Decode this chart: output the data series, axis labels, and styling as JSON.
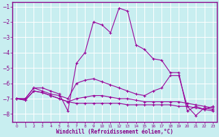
{
  "title": "",
  "xlabel": "Windchill (Refroidissement éolien,°C)",
  "ylabel": "",
  "background_color": "#c8eef0",
  "line_color": "#990099",
  "grid_color": "#ffffff",
  "xlabel_color": "#880088",
  "border_color": "#880088",
  "xlim": [
    -0.5,
    23.5
  ],
  "ylim": [
    -8.5,
    -0.7
  ],
  "yticks": [
    -8,
    -7,
    -6,
    -5,
    -4,
    -3,
    -2,
    -1
  ],
  "xticks": [
    0,
    1,
    2,
    3,
    4,
    5,
    6,
    7,
    8,
    9,
    10,
    11,
    12,
    13,
    14,
    15,
    16,
    17,
    18,
    19,
    20,
    21,
    22,
    23
  ],
  "series": [
    [
      -7.0,
      -7.0,
      -6.3,
      -6.3,
      -6.5,
      -6.7,
      -7.8,
      -4.7,
      -4.0,
      -2.0,
      -2.2,
      -2.7,
      -1.1,
      -1.3,
      -3.5,
      -3.8,
      -4.4,
      -4.5,
      -5.3,
      -5.3,
      -7.8,
      -7.5,
      -7.7,
      -7.5
    ],
    [
      -7.0,
      -7.0,
      -6.3,
      -6.5,
      -6.7,
      -6.8,
      -7.0,
      -6.0,
      -5.8,
      -5.7,
      -5.9,
      -6.1,
      -6.3,
      -6.5,
      -6.7,
      -6.8,
      -6.5,
      -6.3,
      -5.5,
      -5.5,
      -7.5,
      -8.1,
      -7.6,
      -7.7
    ],
    [
      -7.0,
      -7.1,
      -6.5,
      -6.6,
      -6.8,
      -7.0,
      -7.2,
      -7.0,
      -6.9,
      -6.8,
      -6.8,
      -6.9,
      -7.0,
      -7.0,
      -7.1,
      -7.2,
      -7.2,
      -7.2,
      -7.2,
      -7.2,
      -7.3,
      -7.4,
      -7.5,
      -7.6
    ],
    [
      -7.0,
      -7.1,
      -6.5,
      -6.6,
      -6.8,
      -7.0,
      -7.2,
      -7.3,
      -7.3,
      -7.3,
      -7.3,
      -7.3,
      -7.3,
      -7.4,
      -7.4,
      -7.4,
      -7.4,
      -7.4,
      -7.4,
      -7.5,
      -7.5,
      -7.6,
      -7.7,
      -7.8
    ]
  ]
}
